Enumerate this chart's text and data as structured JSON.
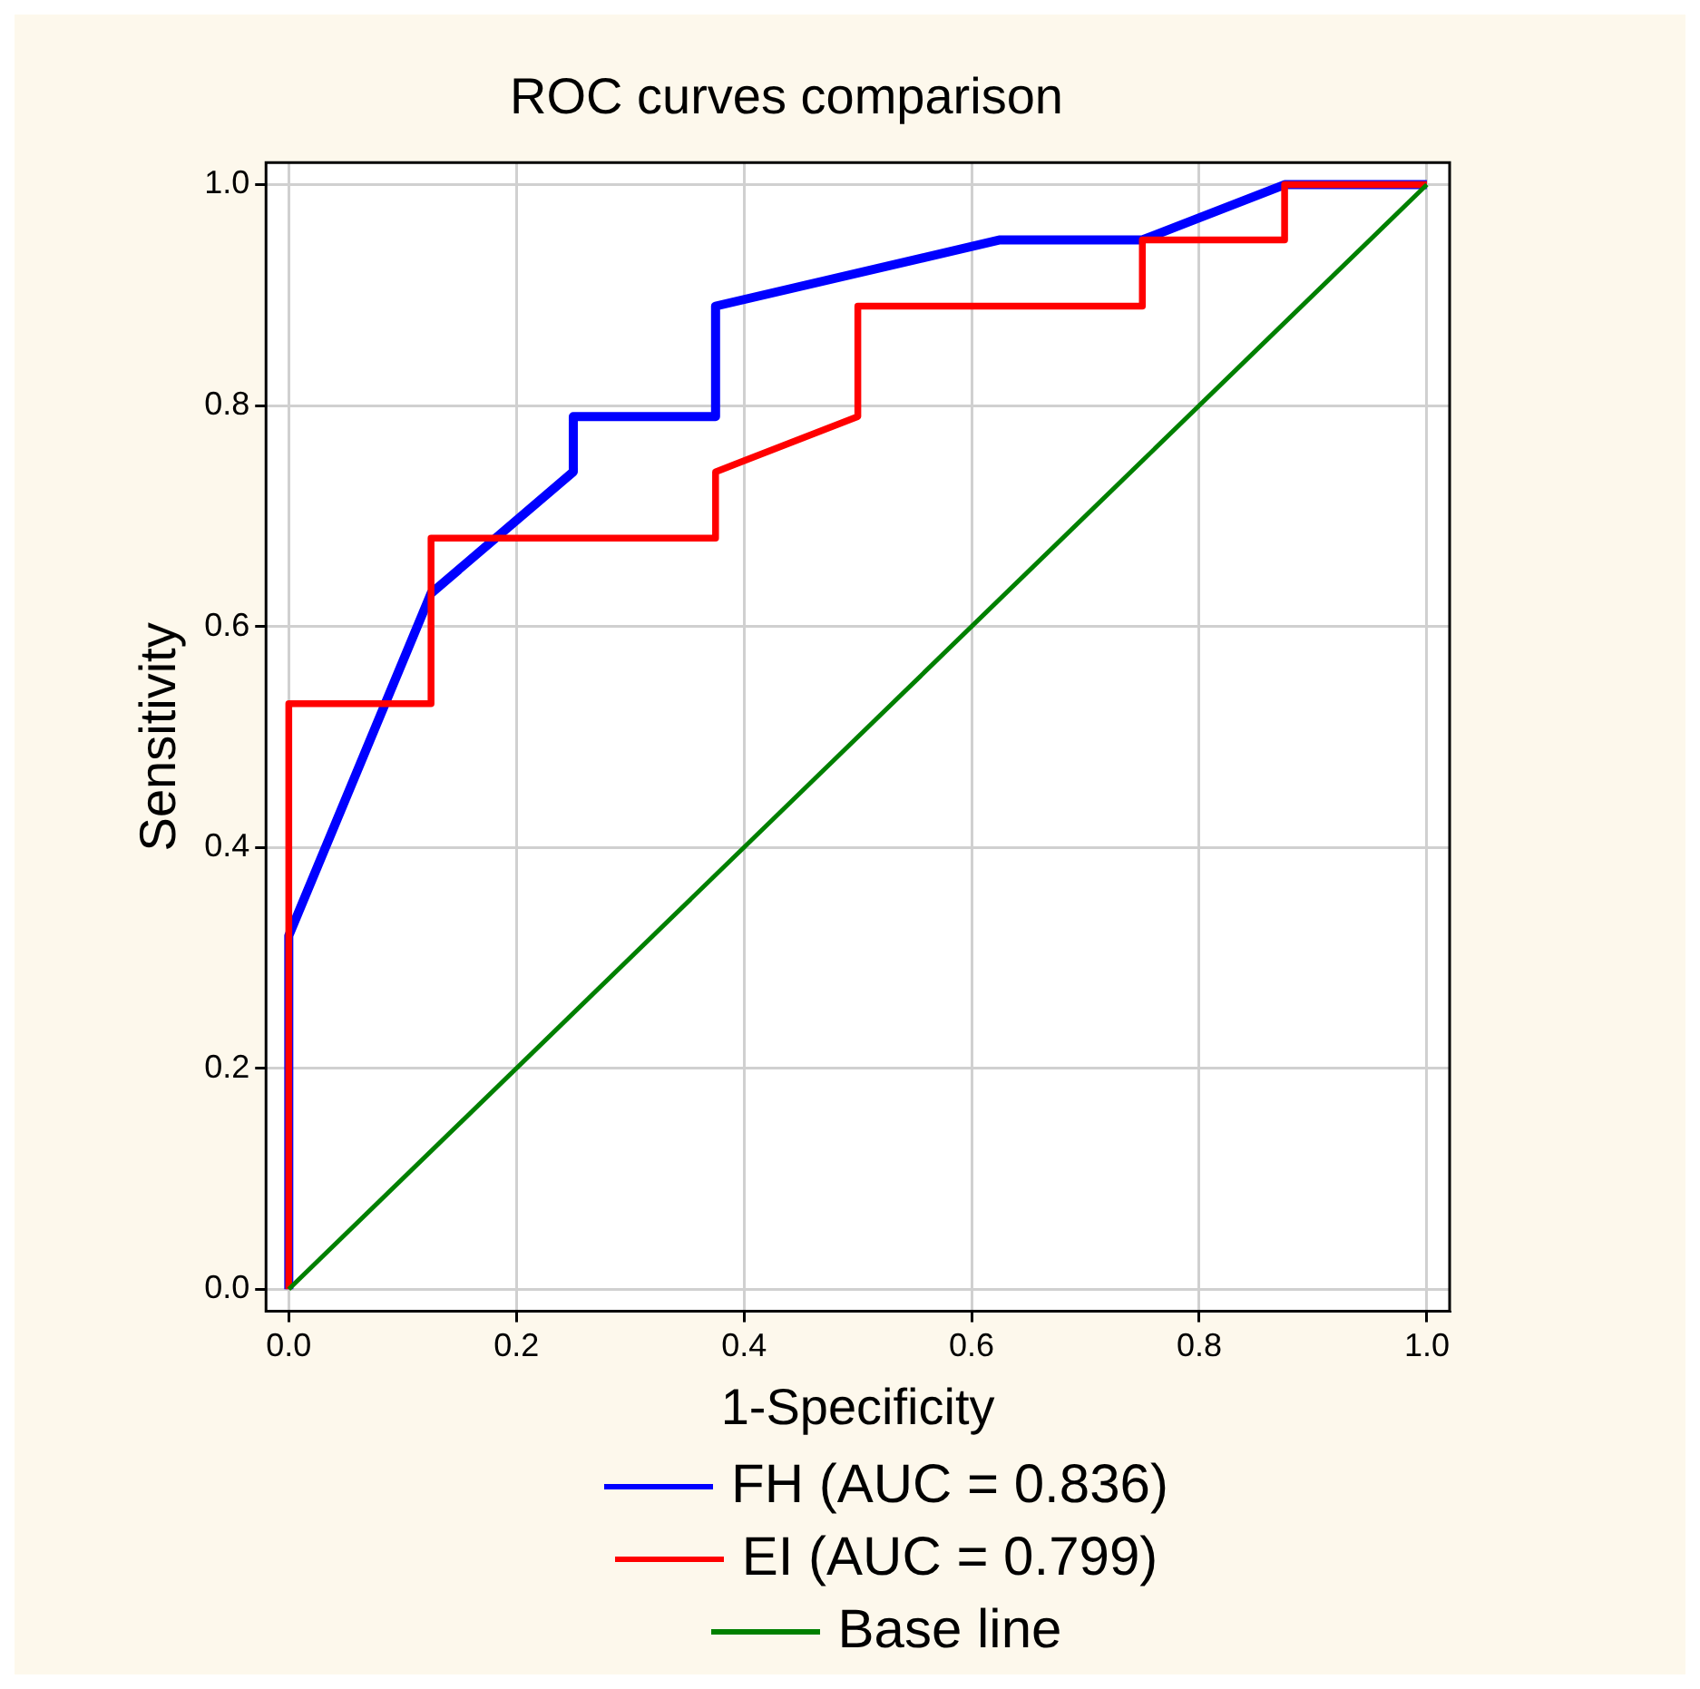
{
  "chart_data": {
    "type": "line",
    "title": "ROC curves comparison",
    "xlabel": "1-Specificity",
    "ylabel": "Sensitivity",
    "xlim": [
      -0.02,
      1.02
    ],
    "ylim": [
      -0.02,
      1.02
    ],
    "xticks": [
      {
        "value": 0,
        "label": "0.0"
      },
      0.2,
      0.4,
      0.6,
      0.8,
      {
        "value": 1,
        "label": "1.0"
      }
    ],
    "yticks": [
      {
        "value": 0,
        "label": "0.0"
      },
      0.2,
      0.4,
      0.6,
      0.8,
      {
        "value": 1,
        "label": "1.0"
      }
    ],
    "grid": true,
    "legend": "bottom",
    "line_style": "solid",
    "series": [
      {
        "name": "FH (AUC = 0.836)",
        "color": "#0000ff",
        "x": [
          0,
          0,
          0.125,
          0.25,
          0.25,
          0.375,
          0.375,
          0.625,
          0.75,
          0.875,
          1
        ],
        "values": [
          0,
          0.32,
          0.63,
          0.74,
          0.79,
          0.79,
          0.89,
          0.95,
          0.95,
          1,
          1
        ]
      },
      {
        "name": "EI (AUC = 0.799)",
        "color": "#ff0000",
        "x": [
          0,
          0,
          0.125,
          0.125,
          0.375,
          0.375,
          0.5,
          0.5,
          0.75,
          0.75,
          0.875,
          0.875,
          1
        ],
        "values": [
          0,
          0.53,
          0.53,
          0.68,
          0.68,
          0.74,
          0.79,
          0.89,
          0.89,
          0.95,
          0.95,
          1,
          1
        ]
      },
      {
        "name": "Base line",
        "color": "#008000",
        "x": [
          0,
          1
        ],
        "values": [
          0,
          1
        ]
      }
    ]
  }
}
